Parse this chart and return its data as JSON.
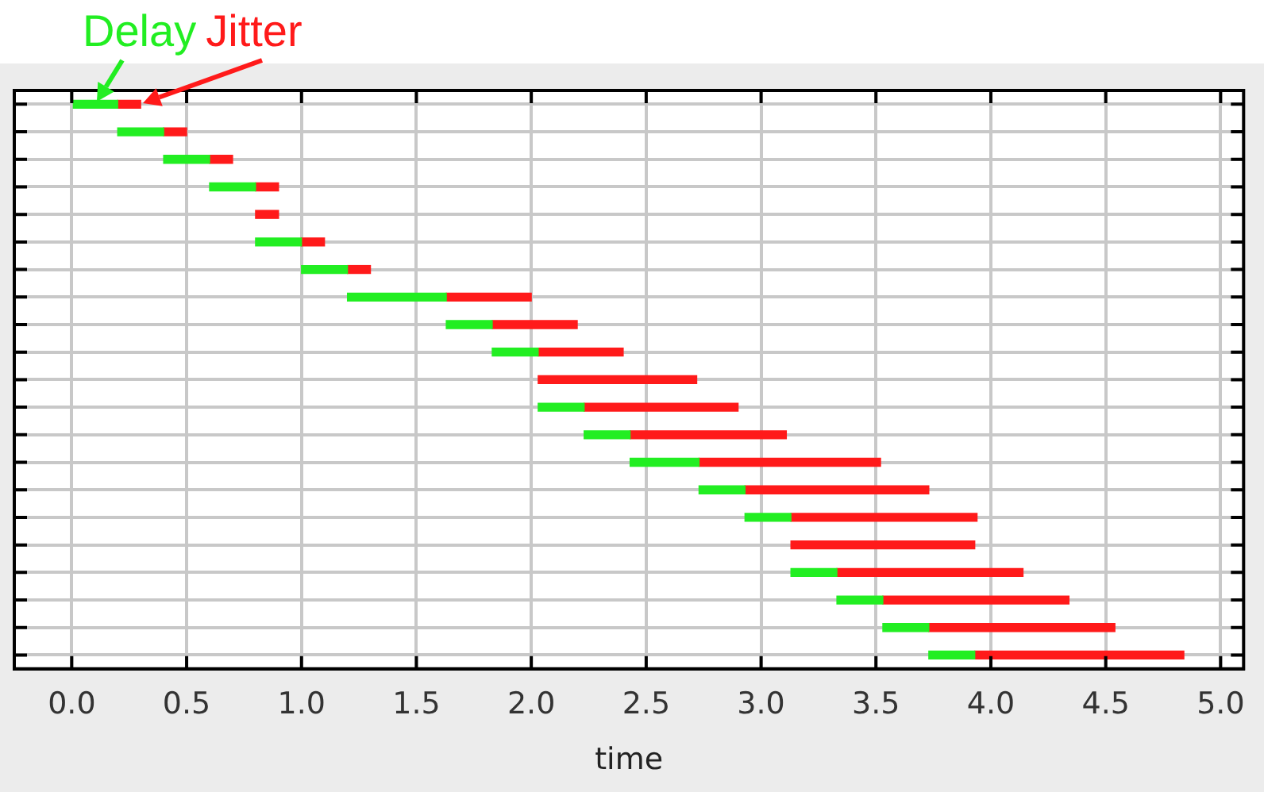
{
  "chart_data": {
    "type": "bar",
    "orientation": "horizontal",
    "xlabel": "time",
    "categories": [
      null,
      null,
      null,
      null,
      null,
      null,
      null,
      null,
      null,
      null,
      null,
      null,
      null,
      null,
      null,
      null,
      null,
      null,
      null,
      null,
      null
    ],
    "series": [
      {
        "name": "Delay",
        "color": "#22ee22",
        "base": [
          0,
          0.2,
          0.4,
          0.6,
          null,
          0.8,
          1.0,
          1.2,
          1.63,
          1.83,
          null,
          2.03,
          2.23,
          2.43,
          2.73,
          2.93,
          null,
          3.13,
          3.33,
          3.53,
          3.73
        ],
        "values": [
          0.2,
          0.2,
          0.2,
          0.2,
          null,
          0.2,
          0.2,
          0.43,
          0.2,
          0.2,
          null,
          0.2,
          0.2,
          0.3,
          0.2,
          0.2,
          null,
          0.2,
          0.2,
          0.2,
          0.2
        ]
      },
      {
        "name": "Jitter",
        "color": "#ff1a1a",
        "base": [
          0.2,
          0.4,
          0.6,
          0.8,
          0.8,
          1.0,
          1.2,
          1.63,
          1.83,
          2.03,
          2.03,
          2.23,
          2.43,
          2.73,
          2.93,
          3.13,
          3.13,
          3.33,
          3.53,
          3.73,
          3.93
        ],
        "values": [
          0.1,
          0.1,
          0.1,
          0.1,
          0.1,
          0.1,
          0.1,
          0.37,
          0.37,
          0.37,
          0.69,
          0.67,
          0.68,
          0.79,
          0.8,
          0.81,
          0.8,
          0.81,
          0.81,
          0.81,
          0.91
        ]
      }
    ],
    "xlim": [
      -0.25,
      5.1
    ],
    "xticks": [
      {
        "value": 0,
        "label": "0.0"
      },
      {
        "value": 0.5,
        "label": "0.5"
      },
      {
        "value": 1,
        "label": "1.0"
      },
      {
        "value": 1.5,
        "label": "1.5"
      },
      {
        "value": 2,
        "label": "2.0"
      },
      {
        "value": 2.5,
        "label": "2.5"
      },
      {
        "value": 3,
        "label": "3.0"
      },
      {
        "value": 3.5,
        "label": "3.5"
      },
      {
        "value": 4,
        "label": "4.0"
      },
      {
        "value": 4.5,
        "label": "4.5"
      },
      {
        "value": 5,
        "label": "5.0"
      }
    ],
    "grid": true,
    "legend": false,
    "tick_labels": "x"
  }
}
